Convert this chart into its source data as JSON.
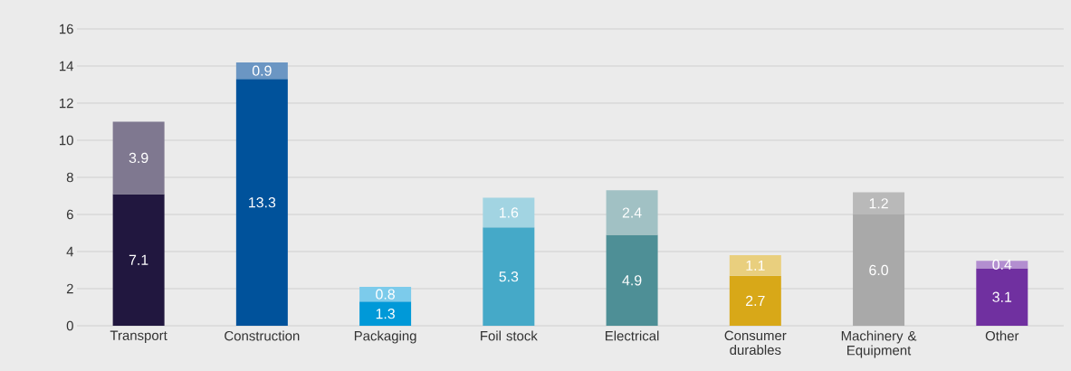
{
  "chart_data": {
    "type": "bar",
    "stacked": true,
    "categories": [
      "Transport",
      "Construction",
      "Packaging",
      "Foil stock",
      "Electrical",
      "Consumer durables",
      "Machinery & Equipment",
      "Other"
    ],
    "series": [
      {
        "values": [
          7.1,
          13.3,
          1.3,
          5.3,
          4.9,
          2.7,
          6.0,
          3.1
        ],
        "value_labels": [
          "7.1",
          "13.3",
          "1.3",
          "5.3",
          "4.9",
          "2.7",
          "6.0",
          "3.1"
        ],
        "colors": [
          "#21173f",
          "#00529b",
          "#0099d8",
          "#45a9c8",
          "#4e8f96",
          "#d8a818",
          "#a9a9a9",
          "#7030a0"
        ]
      },
      {
        "values": [
          3.9,
          0.9,
          0.8,
          1.6,
          2.4,
          1.1,
          1.2,
          0.4
        ],
        "value_labels": [
          "3.9",
          "0.9",
          "0.8",
          "1.6",
          "2.4",
          "1.1",
          "1.2",
          "0.4"
        ],
        "colors": [
          "#7f7890",
          "#6b96c3",
          "#7ccbeb",
          "#a2d4e2",
          "#a1c1c4",
          "#e9cf7e",
          "#b9b9b9",
          "#b38ed0"
        ]
      }
    ],
    "ylim": [
      0,
      16
    ],
    "yticks": [
      0,
      2,
      4,
      6,
      8,
      10,
      12,
      14,
      16
    ],
    "grid": "y"
  }
}
